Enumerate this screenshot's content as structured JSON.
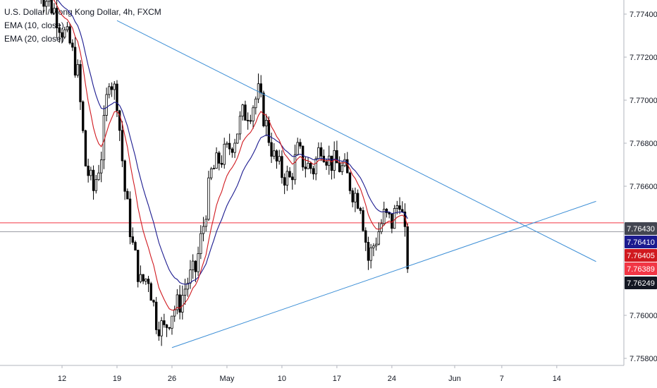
{
  "legend": {
    "title": "U.S. Dollar / Hong Kong Dollar, 4h, FXCM",
    "ema1": "EMA (10, close)",
    "ema2": "EMA (20, close)"
  },
  "colors": {
    "candle": "#000000",
    "ema10": "#d0191f",
    "ema20": "#1b1a8f",
    "trendline": "#3d8fd6",
    "hline_red": "#f23645",
    "hline_gray": "#787b86",
    "axis": "#b2b5be",
    "tag_last_price": "#131722",
    "tag_ema10": "#d0191f",
    "tag_ema20": "#1b1a8f",
    "tag_red_line": "#f23645"
  },
  "chart_data": {
    "type": "candlestick",
    "title": "U.S. Dollar / Hong Kong Dollar, 4h, FXCM",
    "y_ticks": [
      "7.77400",
      "7.77200",
      "7.77000",
      "7.76800",
      "7.76600",
      "7.76000",
      "7.75800"
    ],
    "ylim": [
      7.7577,
      7.7755
    ],
    "x_ticks": [
      "12",
      "19",
      "26",
      "May",
      "10",
      "17",
      "24",
      "Jun",
      "7",
      "14"
    ],
    "price_tags": [
      {
        "label": "7.76430",
        "value": 7.7643,
        "kind": "horizontal-line"
      },
      {
        "label": "7.76410",
        "value": 7.7641,
        "kind": "ema20"
      },
      {
        "label": "7.76405",
        "value": 7.76405,
        "kind": "ema10"
      },
      {
        "label": "7.76389",
        "value": 7.76389,
        "kind": "horizontal-line"
      },
      {
        "label": "7.76249",
        "value": 7.76249,
        "kind": "last-price"
      }
    ],
    "horizontal_lines": [
      7.7643,
      7.76389
    ],
    "trendlines": [
      {
        "name": "descending",
        "from": {
          "date": "Apr 19",
          "price": 7.7737
        },
        "to": {
          "date": "Jun 19",
          "price": 7.7625
        }
      },
      {
        "name": "ascending",
        "from": {
          "date": "Apr 26",
          "price": 7.7585
        },
        "to": {
          "date": "Jun 19",
          "price": 7.7653
        }
      }
    ],
    "series": [
      {
        "name": "EMA (10, close)",
        "type": "line"
      },
      {
        "name": "EMA (20, close)",
        "type": "line"
      }
    ],
    "path": [
      [
        "Apr 9",
        7.7752
      ],
      [
        "Apr 11",
        7.7742
      ],
      [
        "Apr 12",
        7.7733
      ],
      [
        "Apr 13",
        7.7726
      ],
      [
        "Apr 14",
        7.7712
      ],
      [
        "Apr 15",
        7.767
      ],
      [
        "Apr 16",
        7.7658
      ],
      [
        "Apr 17",
        7.7675
      ],
      [
        "Apr 18",
        7.7712
      ],
      [
        "Apr 19",
        7.7701
      ],
      [
        "Apr 20",
        7.7658
      ],
      [
        "Apr 21",
        7.7632
      ],
      [
        "Apr 22",
        7.7615
      ],
      [
        "Apr 23",
        7.7618
      ],
      [
        "Apr 24",
        7.7598
      ],
      [
        "Apr 25",
        7.7593
      ],
      [
        "Apr 26",
        7.7602
      ],
      [
        "Apr 27",
        7.7606
      ],
      [
        "Apr 28",
        7.7616
      ],
      [
        "Apr 29",
        7.7621
      ],
      [
        "Apr 30",
        7.7642
      ],
      [
        "May 1",
        7.7666
      ],
      [
        "May 2",
        7.7672
      ],
      [
        "May 3",
        7.7676
      ],
      [
        "May 4",
        7.7683
      ],
      [
        "May 5",
        7.7693
      ],
      [
        "May 6",
        7.7696
      ],
      [
        "May 7",
        7.7703
      ],
      [
        "May 8",
        7.7688
      ],
      [
        "May 9",
        7.7673
      ],
      [
        "May 10",
        7.7666
      ],
      [
        "May 11",
        7.7663
      ],
      [
        "May 12",
        7.7676
      ],
      [
        "May 13",
        7.767
      ],
      [
        "May 14",
        7.7668
      ],
      [
        "May 15",
        7.768
      ],
      [
        "May 16",
        7.7672
      ],
      [
        "May 17",
        7.767
      ],
      [
        "May 18",
        7.7667
      ],
      [
        "May 19",
        7.7658
      ],
      [
        "May 20",
        7.7653
      ],
      [
        "May 21",
        7.7626
      ],
      [
        "May 22",
        7.7636
      ],
      [
        "May 23",
        7.7646
      ],
      [
        "May 24",
        7.7643
      ],
      [
        "May 25",
        7.7655
      ],
      [
        "May 25.5",
        7.7641
      ],
      [
        "May 26",
        7.76249
      ]
    ]
  }
}
